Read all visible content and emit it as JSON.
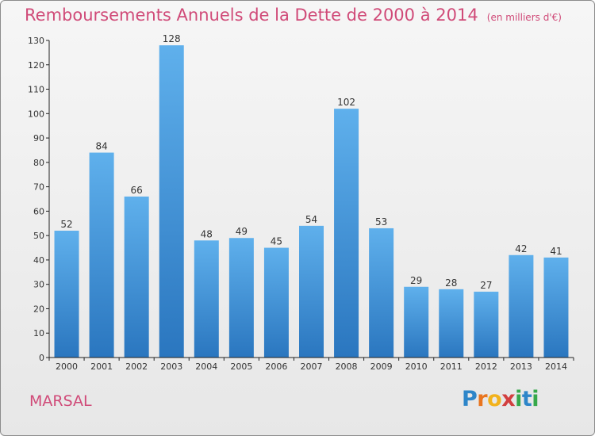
{
  "chart_data": {
    "type": "bar",
    "title": "Remboursements Annuels de la Dette de 2000 à 2014",
    "subtitle": "(en milliers d'€)",
    "categories": [
      "2000",
      "2001",
      "2002",
      "2003",
      "2004",
      "2005",
      "2006",
      "2007",
      "2008",
      "2009",
      "2010",
      "2011",
      "2012",
      "2013",
      "2014"
    ],
    "values": [
      52,
      84,
      66,
      128,
      48,
      49,
      45,
      54,
      102,
      53,
      29,
      28,
      27,
      42,
      41
    ],
    "ylim": [
      0,
      130
    ],
    "yticks": [
      0,
      10,
      20,
      30,
      40,
      50,
      60,
      70,
      80,
      90,
      100,
      110,
      120,
      130
    ],
    "grid": false,
    "xlabel": "",
    "ylabel": ""
  },
  "location": "MARSAL",
  "logo": {
    "text": "Proxiti",
    "letter_colors": [
      "#2e86c9",
      "#e9751f",
      "#f2b21c",
      "#d23f3f",
      "#36a84a",
      "#2e86c9",
      "#36a84a"
    ]
  },
  "colors": {
    "bar_top": "#5fb0ec",
    "bar_bottom": "#2a76bf",
    "title": "#d04a78",
    "axis": "#222222"
  }
}
